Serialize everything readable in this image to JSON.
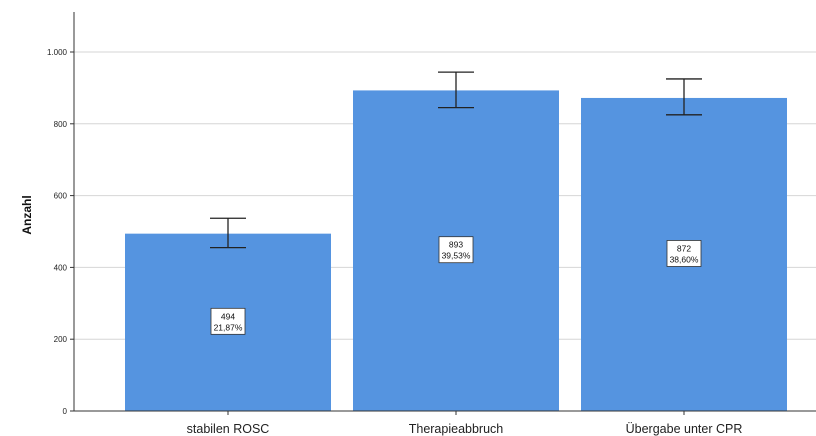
{
  "chart_data": {
    "type": "bar",
    "title": "",
    "xlabel": "",
    "ylabel": "Anzahl",
    "ylim": [
      0,
      1100
    ],
    "y_ticks": [
      0,
      200,
      400,
      600,
      800,
      1000
    ],
    "y_tick_labels": [
      "0",
      "200",
      "400",
      "600",
      "800",
      "1.000"
    ],
    "categories": [
      "stabilen ROSC",
      "Therapieabbruch",
      "Übergabe unter CPR"
    ],
    "values": [
      494,
      893,
      872
    ],
    "error_low": [
      455,
      845,
      825
    ],
    "error_high": [
      537,
      944,
      925
    ],
    "data_labels": [
      {
        "count": "494",
        "percent": "21,87%"
      },
      {
        "count": "893",
        "percent": "39,53%"
      },
      {
        "count": "872",
        "percent": "38,60%"
      }
    ],
    "grid": true,
    "bar_color": "#5594e0"
  }
}
